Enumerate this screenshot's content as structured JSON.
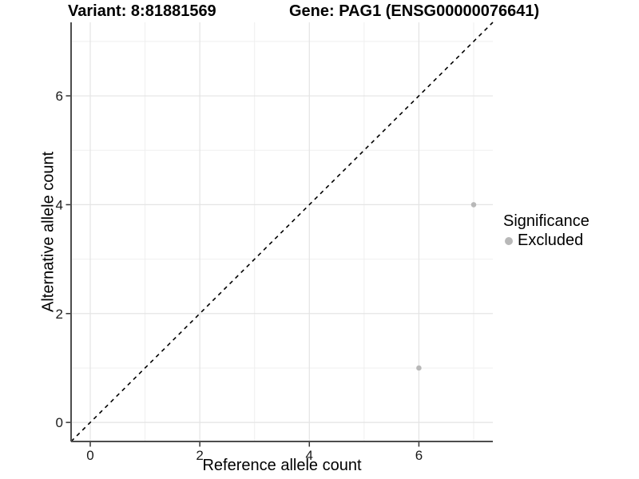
{
  "chart_data": {
    "type": "scatter",
    "title_left": "Variant: 8:81881569",
    "title_right": "Gene: PAG1 (ENSG00000076641)",
    "xlabel": "Reference allele count",
    "ylabel": "Alternative allele count",
    "xlim": [
      -0.35,
      7.35
    ],
    "ylim": [
      -0.35,
      7.35
    ],
    "x_ticks": [
      0,
      2,
      4,
      6
    ],
    "y_ticks": [
      0,
      2,
      4,
      6
    ],
    "x_minor_ticks": [
      1,
      3,
      5,
      7
    ],
    "y_minor_ticks": [
      1,
      3,
      5,
      7
    ],
    "grid": true,
    "identity_line": {
      "style": "dashed",
      "slope": 1,
      "intercept": 0,
      "color": "#000000"
    },
    "series": [
      {
        "name": "Excluded",
        "color": "#b8b8b8",
        "points": [
          {
            "x": 7,
            "y": 4
          },
          {
            "x": 6,
            "y": 1
          }
        ]
      }
    ],
    "legend": {
      "position": "right",
      "title": "Significance",
      "items": [
        {
          "label": "Excluded",
          "color": "#b8b8b8"
        }
      ]
    },
    "colors": {
      "background": "#ffffff",
      "grid_major": "#e4e4e4",
      "grid_minor": "#efefef",
      "axis_line": "#4d4d4d",
      "tick_mark": "#333333",
      "tick_label": "#1a1a1a",
      "point": "#b8b8b8",
      "text": "#000000"
    }
  }
}
